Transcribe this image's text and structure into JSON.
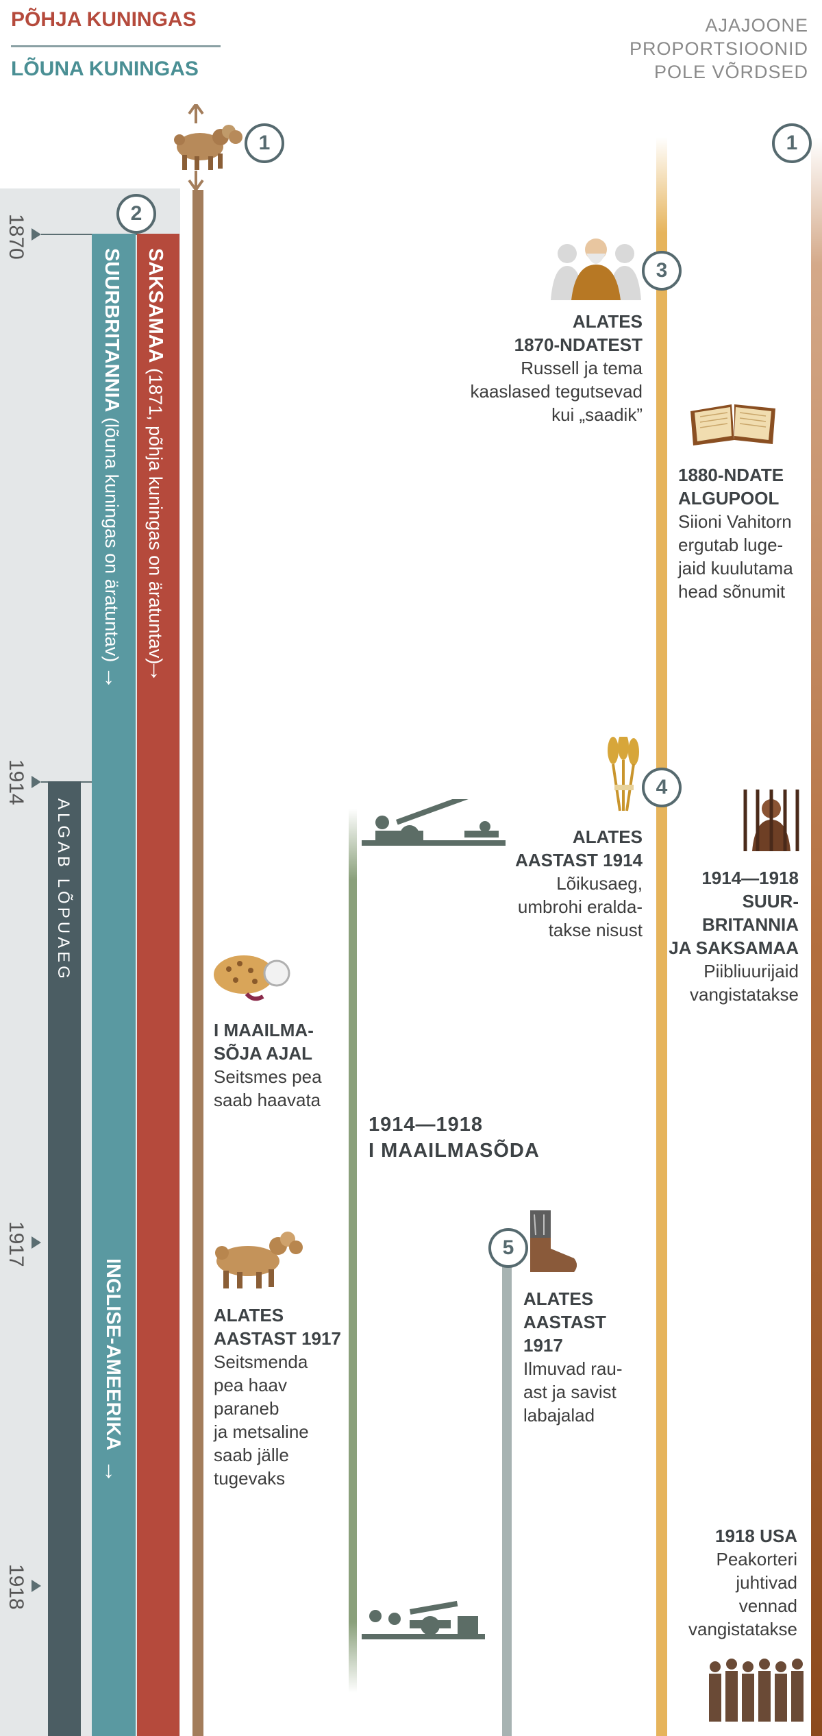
{
  "legend": {
    "north": "PÕHJA KUNINGAS",
    "south": "LÕUNA KUNINGAS"
  },
  "scale_note": [
    "AJAJOONE",
    "PROPORTSIOONID",
    "POLE VÕRDSED"
  ],
  "years": [
    "1870",
    "1914",
    "1917",
    "1918"
  ],
  "bands": {
    "germany_title": "SAKSAMAA",
    "germany_detail": "(1871, põhja kuningas on äratuntav)",
    "britain_title": "SUURBRITANNIA",
    "britain_detail": "(lõuna kuningas on äratuntav)",
    "anglo_american": "INGLISE-AMEERIKA",
    "end_time": "ALGAB LÕPUAEG",
    "arrow": "↓"
  },
  "markers": [
    "1",
    "2",
    "3",
    "4",
    "5",
    "1"
  ],
  "events": {
    "russell": {
      "title": [
        "ALATES",
        "1870-NDATEST"
      ],
      "body": [
        "Russell ja tema",
        "kaaslased tegutsevad",
        "kui „saadik”"
      ]
    },
    "watchtower": {
      "title": [
        "1880-NDATE",
        "ALGUPOOL"
      ],
      "body": [
        "Siioni Vahitorn",
        "ergutab luge-",
        "jaid kuulutama",
        "head sõnumit"
      ]
    },
    "harvest": {
      "title": [
        "ALATES",
        "AASTAST 1914"
      ],
      "body": [
        "Lõikusaeg,",
        "umbrohi eralda-",
        "takse nisust"
      ]
    },
    "imprisoned_uk_de": {
      "title": [
        "1914—1918",
        "SUUR-",
        "BRITANNIA",
        "JA SAKSAMAA"
      ],
      "body": [
        "Piibliuurijaid",
        "vangistatakse"
      ]
    },
    "wound": {
      "title": [
        "I MAAILMA-",
        "SÕJA AJAL"
      ],
      "body": [
        "Seitsmes pea",
        "saab haavata"
      ]
    },
    "ww1": {
      "title": [
        "1914—1918",
        "I MAAILMASÕDA"
      ]
    },
    "healed": {
      "title": [
        "ALATES",
        "AASTAST 1917"
      ],
      "body": [
        "Seitsmenda",
        "pea haav",
        "paraneb",
        "ja metsaline",
        "saab jälle",
        "tugevaks"
      ]
    },
    "feet": {
      "title": [
        "ALATES",
        "AASTAST",
        "1917"
      ],
      "body": [
        "Ilmuvad rau-",
        "ast ja savist",
        "labajalad"
      ]
    },
    "usa": {
      "title": [
        "1918 USA"
      ],
      "body": [
        "Peakorteri",
        "juhtivad",
        "vennad",
        "vangistatakse"
      ]
    }
  },
  "icons": [
    "wild-beast-icon",
    "russell-portrait-icon",
    "open-bible-icon",
    "wheat-sheaf-icon",
    "prisoner-icon",
    "wounded-head-icon",
    "artillery-icon",
    "healed-beast-icon",
    "iron-clay-feet-icon",
    "headquarters-brothers-icon"
  ],
  "colors": {
    "north": "#b54a3c",
    "south": "#4a8f94",
    "end_time": "#4b5d63",
    "beast_line": "#a37d5b",
    "ww1_line": "#8aa07b",
    "feet_line": "#a7b3b2",
    "saints_line": "#e6b45c",
    "right_line": "#8c4a1d"
  }
}
